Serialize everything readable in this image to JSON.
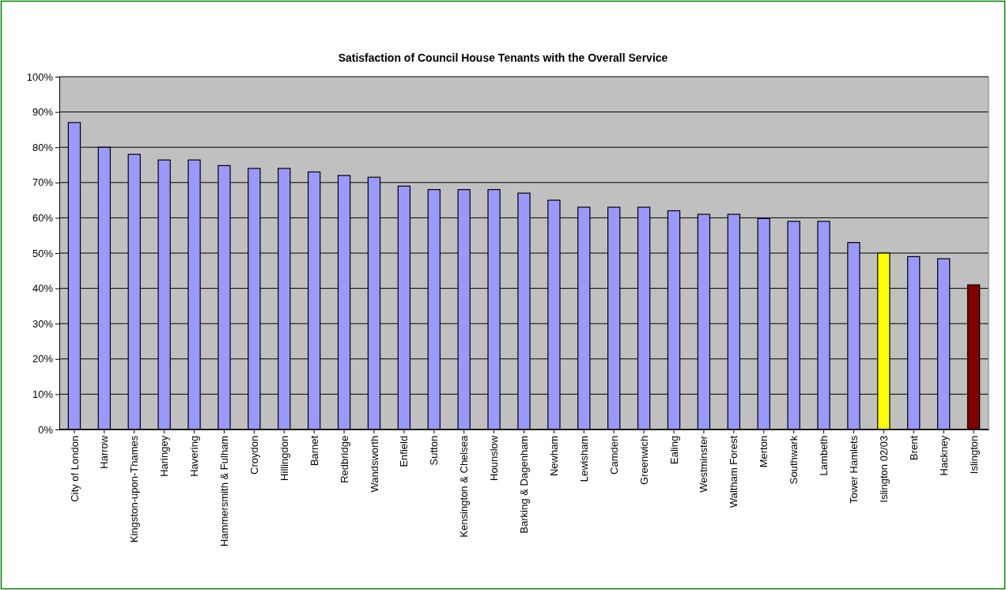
{
  "chart_data": {
    "type": "bar",
    "title": "Satisfaction of Council House Tenants with the Overall Service",
    "categories": [
      "City of London",
      "Harrow",
      "Kingston-upon-Thames",
      "Haringey",
      "Havering",
      "Hammersmith & Fulham",
      "Croydon",
      "Hillingdon",
      "Barnet",
      "Redbridge",
      "Wandsworth",
      "Enfield",
      "Sutton",
      "Kensington & Chelsea",
      "Hounslow",
      "Barking & Dagenham",
      "Newham",
      "Lewisham",
      "Camden",
      "Greenwich",
      "Ealing",
      "Westminster",
      "Waltham Forest",
      "Merton",
      "Southwark",
      "Lambeth",
      "Tower Hamlets",
      "Islington 02/03",
      "Brent",
      "Hackney",
      "Islington"
    ],
    "values": [
      87,
      80,
      78,
      76.4,
      76.4,
      74.8,
      74,
      74,
      73,
      72,
      71.5,
      69,
      68,
      68,
      68,
      67,
      65,
      63,
      63,
      63,
      62,
      61,
      61,
      59.8,
      59,
      59,
      53,
      50,
      49,
      48.4,
      41
    ],
    "colors": [
      "#9999ff",
      "#9999ff",
      "#9999ff",
      "#9999ff",
      "#9999ff",
      "#9999ff",
      "#9999ff",
      "#9999ff",
      "#9999ff",
      "#9999ff",
      "#9999ff",
      "#9999ff",
      "#9999ff",
      "#9999ff",
      "#9999ff",
      "#9999ff",
      "#9999ff",
      "#9999ff",
      "#9999ff",
      "#9999ff",
      "#9999ff",
      "#9999ff",
      "#9999ff",
      "#9999ff",
      "#9999ff",
      "#9999ff",
      "#9999ff",
      "#ffff00",
      "#9999ff",
      "#9999ff",
      "#800000"
    ],
    "ylim": [
      0,
      100
    ],
    "yticks": [
      {
        "value": 0,
        "label": "0%"
      },
      {
        "value": 10,
        "label": "10%"
      },
      {
        "value": 20,
        "label": "20%"
      },
      {
        "value": 30,
        "label": "30%"
      },
      {
        "value": 40,
        "label": "40%"
      },
      {
        "value": 50,
        "label": "50%"
      },
      {
        "value": 60,
        "label": "60%"
      },
      {
        "value": 70,
        "label": "70%"
      },
      {
        "value": 80,
        "label": "80%"
      },
      {
        "value": 90,
        "label": "90%"
      },
      {
        "value": 100,
        "label": "100%"
      }
    ],
    "grid": "y"
  }
}
